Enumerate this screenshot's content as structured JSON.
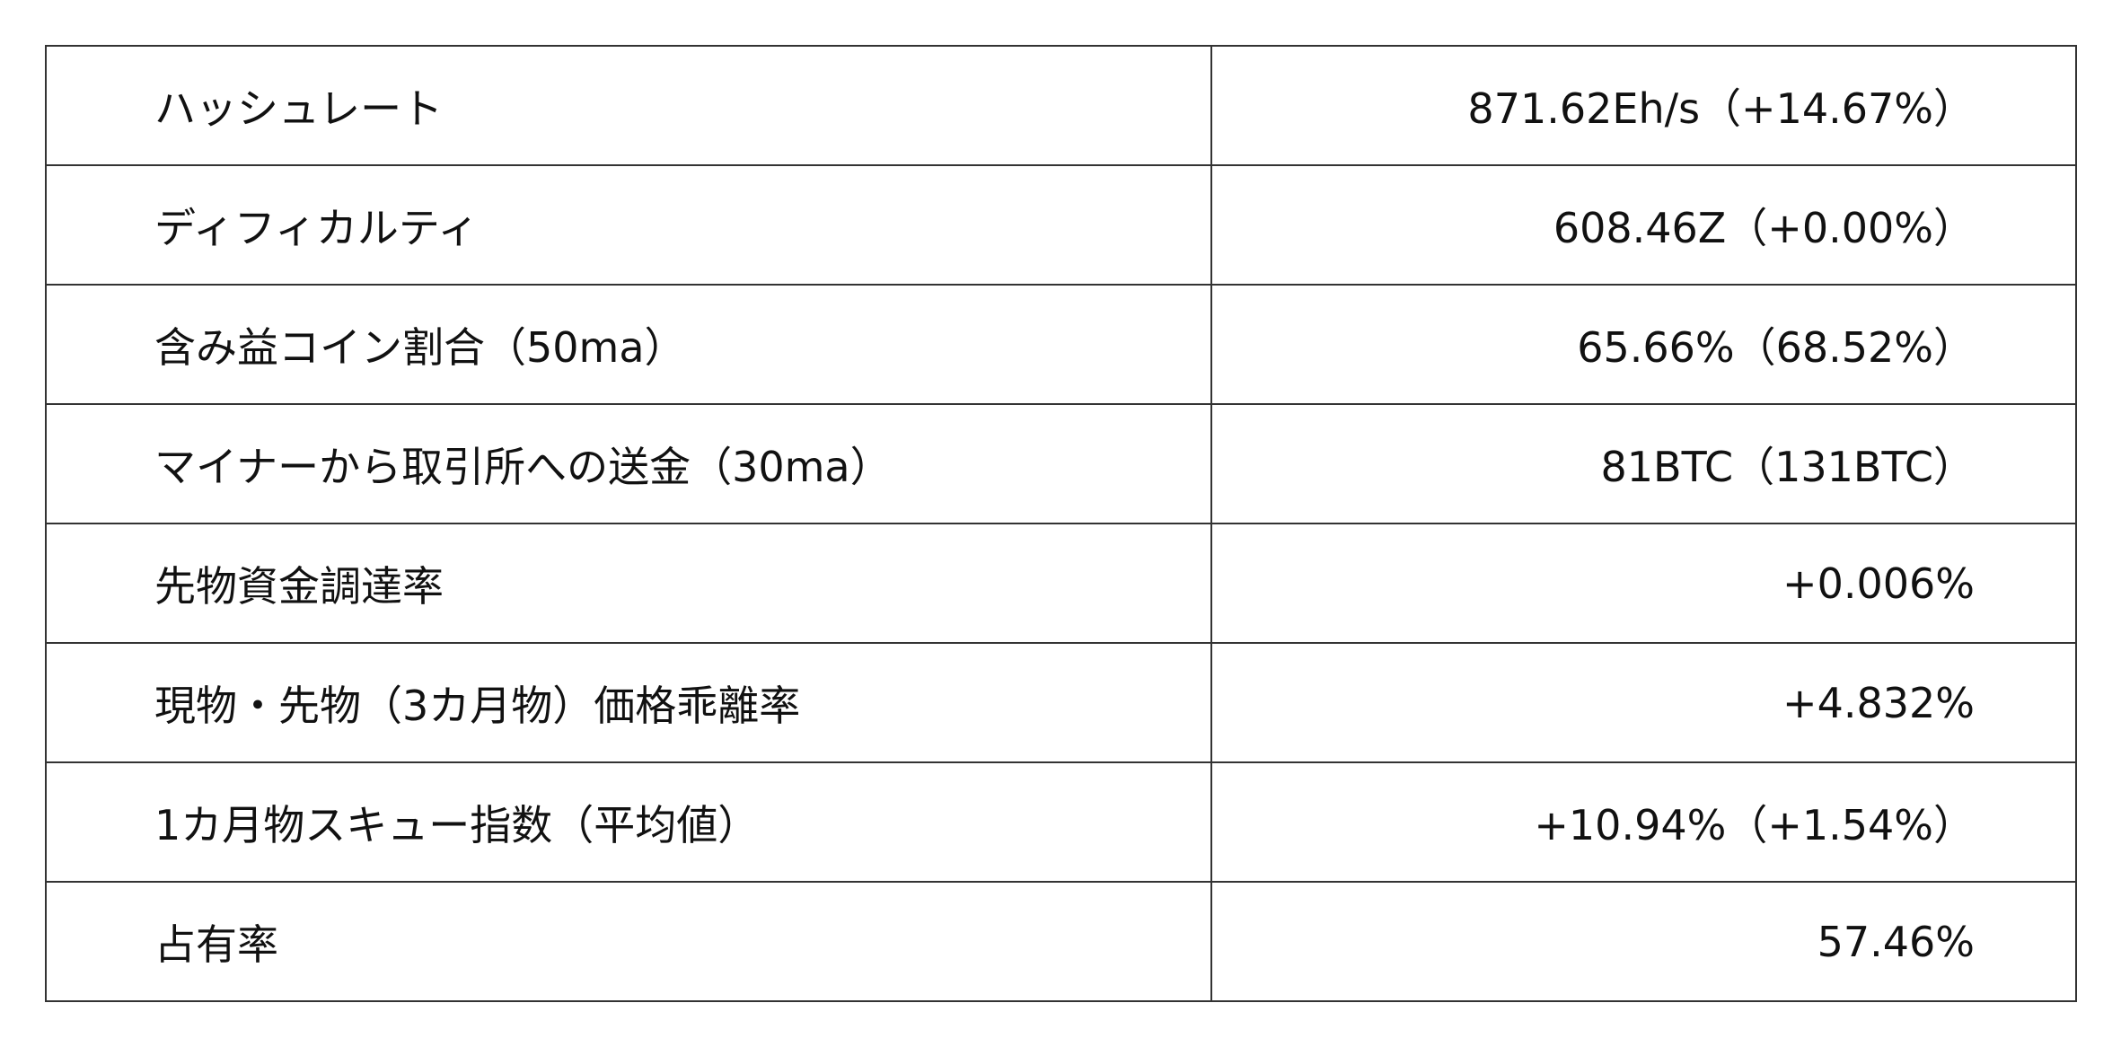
{
  "rows": [
    {
      "label": "ハッシュレート",
      "value": "871.62Eh/s（+14.67%）"
    },
    {
      "label": "ディフィカルティ",
      "value": "608.46Z（+0.00%）"
    },
    {
      "label": "含み益コイン割合（50ma）",
      "value": "65.66%（68.52%）"
    },
    {
      "label": "マイナーから取引所への送金（30ma）",
      "value": "81BTC（131BTC）"
    },
    {
      "label": "先物資金調達率",
      "value": "+0.006%"
    },
    {
      "label": "現物・先物（3カ月物）価格乖離率",
      "value": "+4.832%"
    },
    {
      "label": "1カ月物スキュー指数（平均値）",
      "value": "+10.94%（+1.54%）"
    },
    {
      "label": "占有率",
      "value": "57.46%"
    }
  ]
}
